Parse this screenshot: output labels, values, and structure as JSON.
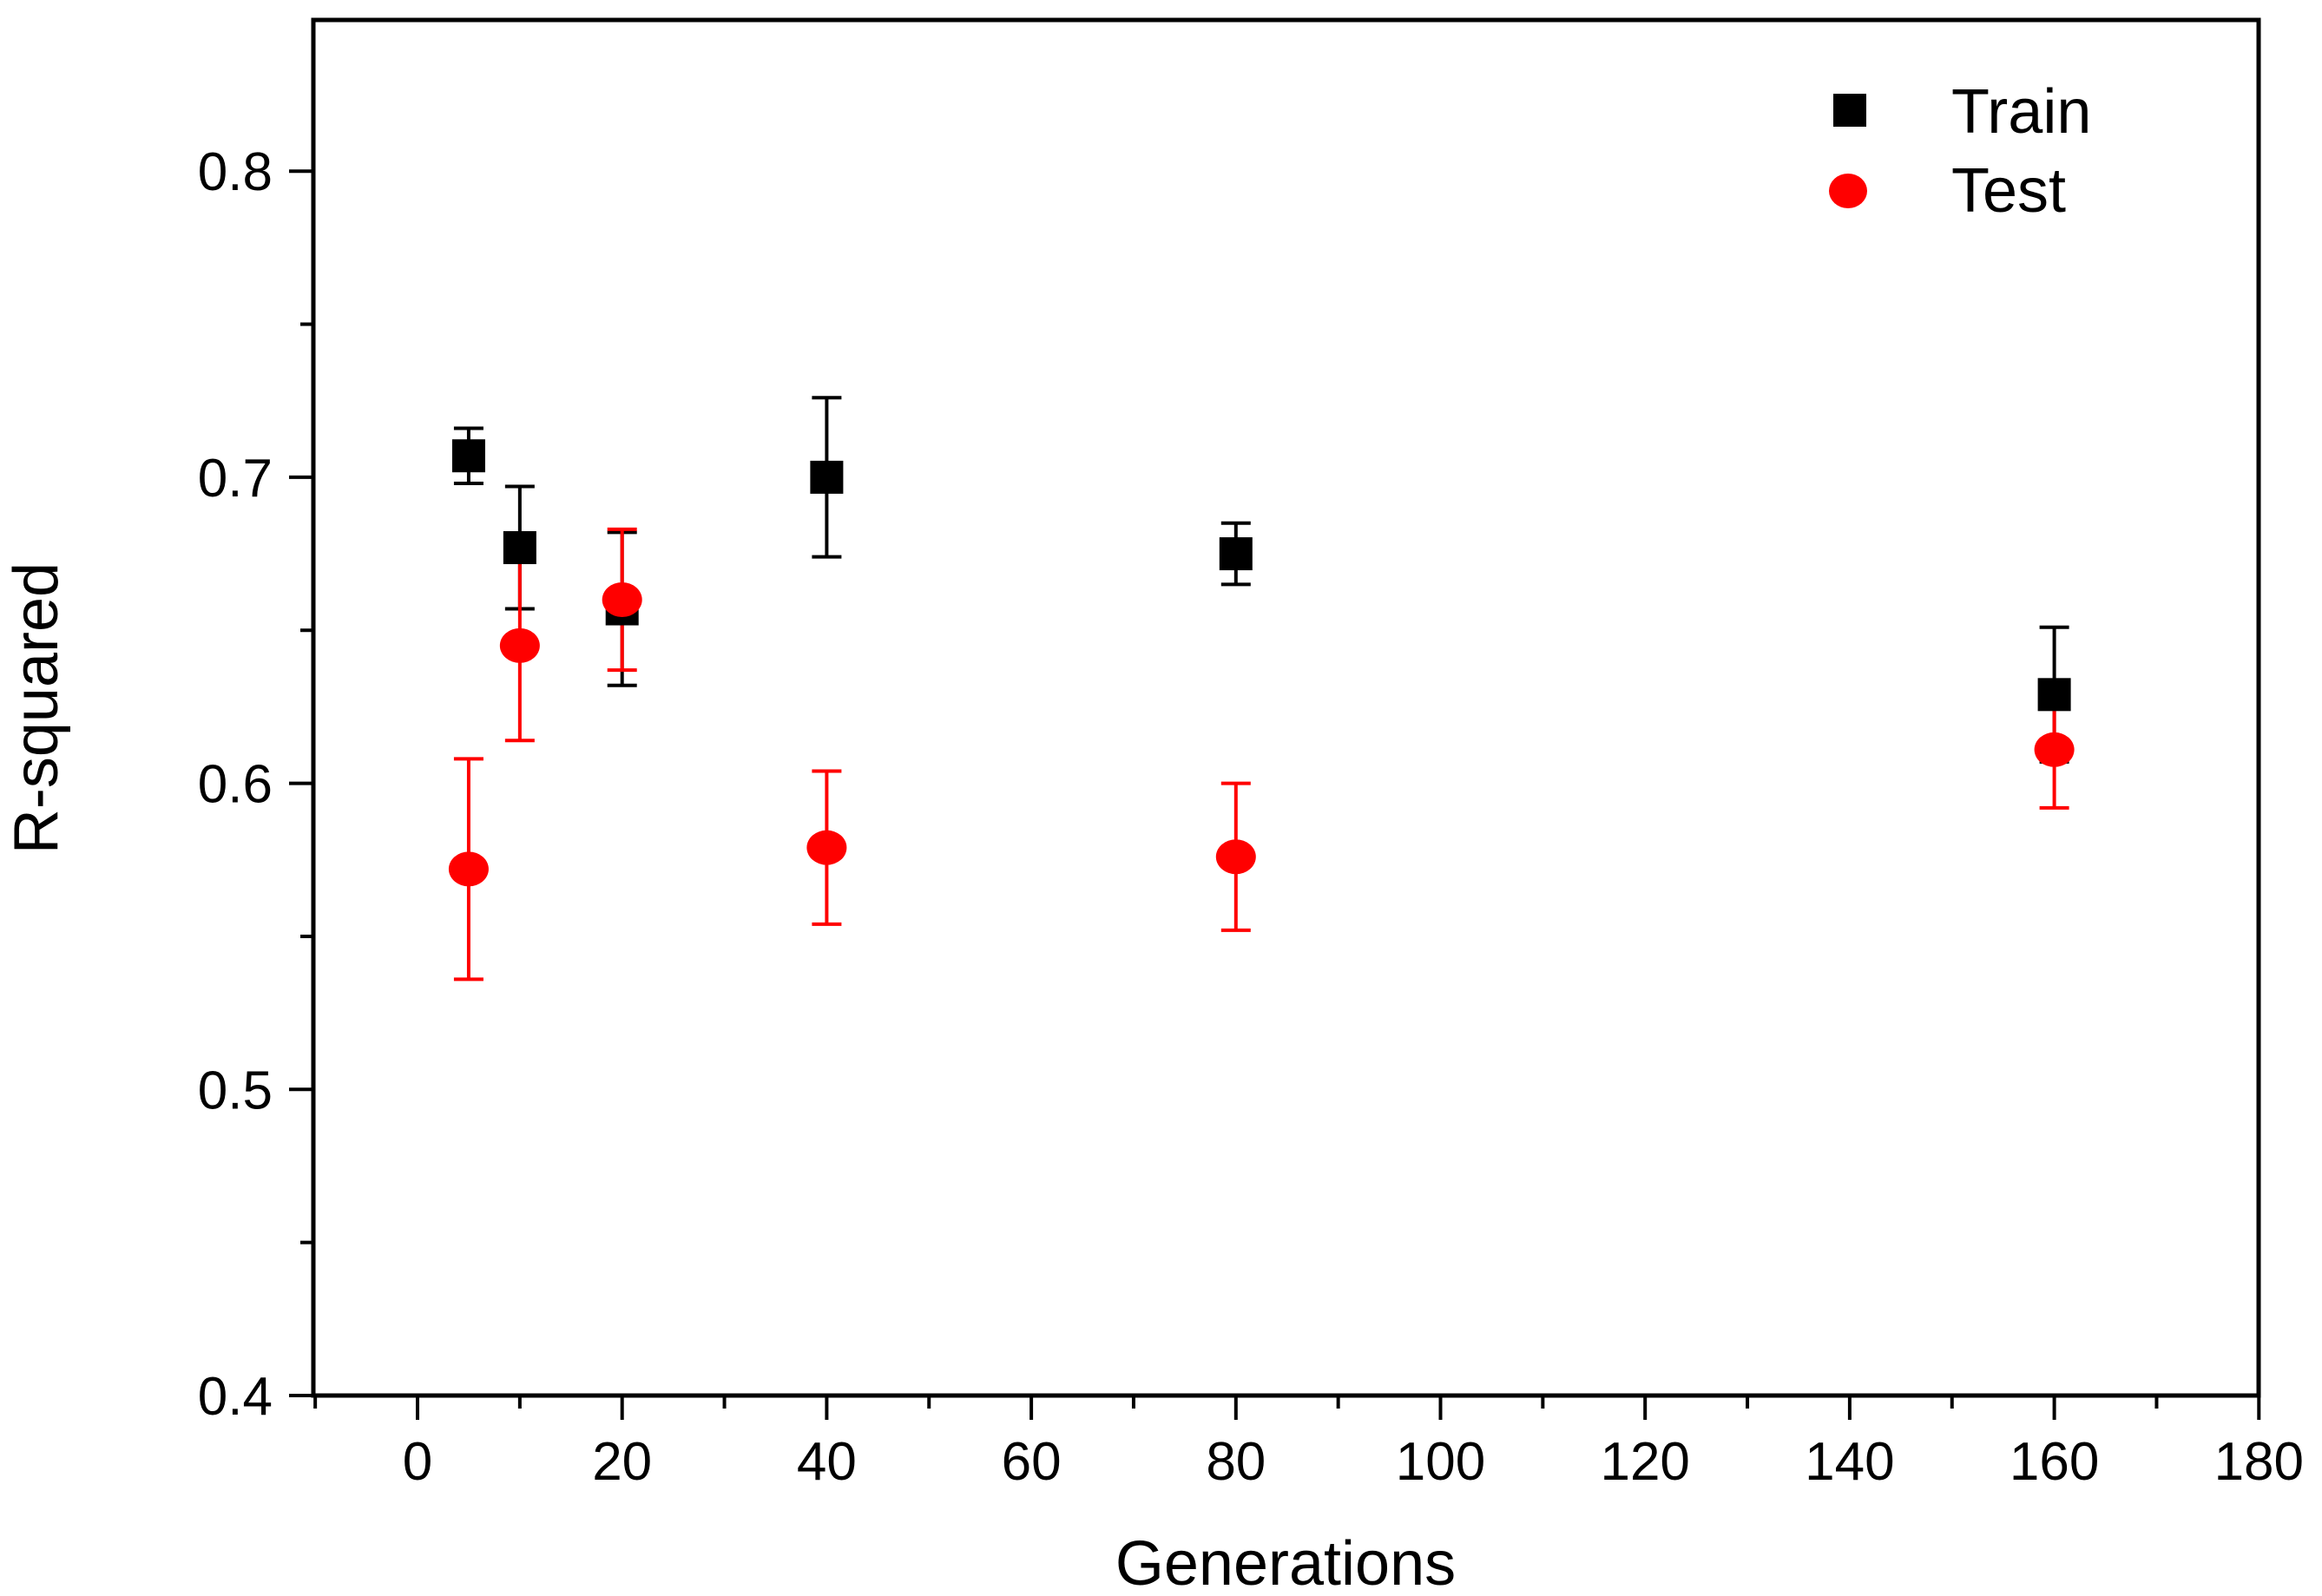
{
  "chart_data": {
    "type": "scatter",
    "title": "",
    "xlabel": "Generations",
    "ylabel": "R-squared",
    "xlim": [
      -10,
      180
    ],
    "ylim": [
      0.4,
      0.85
    ],
    "x_major_ticks": [
      0,
      20,
      40,
      60,
      80,
      100,
      120,
      140,
      160,
      180
    ],
    "x_minor_ticks": [
      -10,
      10,
      30,
      50,
      70,
      90,
      110,
      130,
      150,
      170
    ],
    "x_tick_labels": [
      "0",
      "20",
      "40",
      "60",
      "80",
      "100",
      "120",
      "140",
      "160",
      "180"
    ],
    "y_major_ticks": [
      0.4,
      0.5,
      0.6,
      0.7,
      0.8
    ],
    "y_minor_ticks": [
      0.45,
      0.55,
      0.65,
      0.75
    ],
    "y_tick_labels": [
      "0.4",
      "0.5",
      "0.6",
      "0.7",
      "0.8"
    ],
    "grid": false,
    "legend_position": "top-right",
    "series": [
      {
        "name": "Train",
        "marker": "square",
        "color": "#000000",
        "x": [
          5,
          10,
          20,
          40,
          80,
          160
        ],
        "y": [
          0.707,
          0.677,
          0.657,
          0.7,
          0.675,
          0.629
        ],
        "err": [
          0.009,
          0.02,
          0.025,
          0.026,
          0.01,
          0.022
        ]
      },
      {
        "name": "Test",
        "marker": "circle",
        "color": "#ff0000",
        "x": [
          5,
          10,
          20,
          40,
          80,
          160
        ],
        "y": [
          0.572,
          0.645,
          0.66,
          0.579,
          0.576,
          0.611
        ],
        "err": [
          0.036,
          0.031,
          0.023,
          0.025,
          0.024,
          0.019
        ]
      }
    ]
  }
}
